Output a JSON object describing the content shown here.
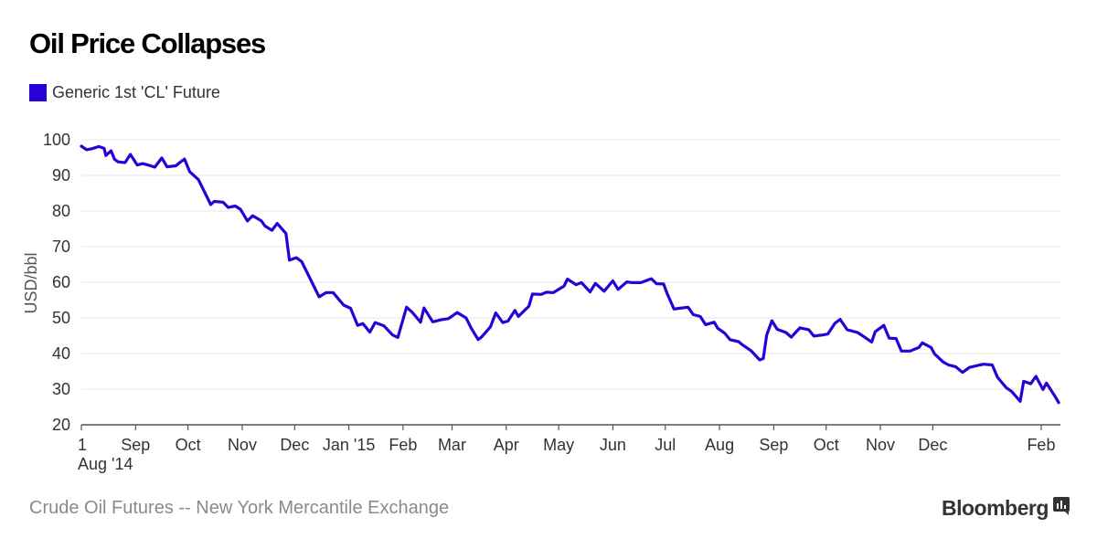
{
  "title": "Oil Price Collapses",
  "source": "Crude Oil Futures -- New York Mercantile Exchange",
  "brand": "Bloomberg",
  "brand_icon": "bloomberg-terminal-icon",
  "colors": {
    "series": "#2b00d7",
    "grid": "#e6e6e6",
    "axis": "#555555",
    "text": "#333333"
  },
  "chart_data": {
    "type": "line",
    "title": "Oil Price Collapses",
    "ylabel": "USD/bbl",
    "xlabel": "",
    "ylim": [
      20,
      100
    ],
    "yticks": [
      20,
      30,
      40,
      50,
      60,
      70,
      80,
      90,
      100
    ],
    "grid": true,
    "legend_position": "top-left",
    "x_domain": [
      "2014-08-01",
      "2016-02-12"
    ],
    "xticks": [
      {
        "date": "2014-08-01",
        "label": "1",
        "sublabel": "Aug '14"
      },
      {
        "date": "2014-09-01",
        "label": "Sep"
      },
      {
        "date": "2014-10-01",
        "label": "Oct"
      },
      {
        "date": "2014-11-01",
        "label": "Nov"
      },
      {
        "date": "2014-12-01",
        "label": "Dec"
      },
      {
        "date": "2015-01-01",
        "label": "Jan '15"
      },
      {
        "date": "2015-02-01",
        "label": "Feb"
      },
      {
        "date": "2015-03-01",
        "label": "Mar"
      },
      {
        "date": "2015-04-01",
        "label": "Apr"
      },
      {
        "date": "2015-05-01",
        "label": "May"
      },
      {
        "date": "2015-06-01",
        "label": "Jun"
      },
      {
        "date": "2015-07-01",
        "label": "Jul"
      },
      {
        "date": "2015-08-01",
        "label": "Aug"
      },
      {
        "date": "2015-09-01",
        "label": "Sep"
      },
      {
        "date": "2015-10-01",
        "label": "Oct"
      },
      {
        "date": "2015-11-01",
        "label": "Nov"
      },
      {
        "date": "2015-12-01",
        "label": "Dec"
      },
      {
        "date": "2016-02-01",
        "label": "Feb"
      }
    ],
    "series": [
      {
        "name": "Generic 1st 'CL' Future",
        "points": [
          [
            "2014-08-01",
            98.2
          ],
          [
            "2014-08-04",
            97.2
          ],
          [
            "2014-08-07",
            97.5
          ],
          [
            "2014-08-11",
            98.1
          ],
          [
            "2014-08-14",
            97.6
          ],
          [
            "2014-08-15",
            95.6
          ],
          [
            "2014-08-18",
            96.9
          ],
          [
            "2014-08-20",
            94.5
          ],
          [
            "2014-08-22",
            93.8
          ],
          [
            "2014-08-26",
            93.6
          ],
          [
            "2014-08-29",
            95.9
          ],
          [
            "2014-09-02",
            92.9
          ],
          [
            "2014-09-05",
            93.3
          ],
          [
            "2014-09-09",
            92.8
          ],
          [
            "2014-09-12",
            92.3
          ],
          [
            "2014-09-16",
            94.9
          ],
          [
            "2014-09-19",
            92.4
          ],
          [
            "2014-09-24",
            92.7
          ],
          [
            "2014-09-26",
            93.5
          ],
          [
            "2014-09-29",
            94.6
          ],
          [
            "2014-10-02",
            91.0
          ],
          [
            "2014-10-07",
            88.8
          ],
          [
            "2014-10-10",
            85.8
          ],
          [
            "2014-10-14",
            81.8
          ],
          [
            "2014-10-16",
            82.7
          ],
          [
            "2014-10-21",
            82.5
          ],
          [
            "2014-10-24",
            81.0
          ],
          [
            "2014-10-28",
            81.4
          ],
          [
            "2014-10-31",
            80.5
          ],
          [
            "2014-11-04",
            77.2
          ],
          [
            "2014-11-07",
            78.7
          ],
          [
            "2014-11-12",
            77.2
          ],
          [
            "2014-11-14",
            75.8
          ],
          [
            "2014-11-18",
            74.6
          ],
          [
            "2014-11-21",
            76.5
          ],
          [
            "2014-11-26",
            73.7
          ],
          [
            "2014-11-28",
            66.2
          ],
          [
            "2014-12-02",
            66.9
          ],
          [
            "2014-12-05",
            65.8
          ],
          [
            "2014-12-10",
            60.9
          ],
          [
            "2014-12-15",
            55.9
          ],
          [
            "2014-12-17",
            56.5
          ],
          [
            "2014-12-19",
            57.1
          ],
          [
            "2014-12-23",
            57.1
          ],
          [
            "2014-12-29",
            53.6
          ],
          [
            "2015-01-02",
            52.7
          ],
          [
            "2015-01-06",
            47.9
          ],
          [
            "2015-01-09",
            48.4
          ],
          [
            "2015-01-13",
            46.0
          ],
          [
            "2015-01-16",
            48.7
          ],
          [
            "2015-01-21",
            47.8
          ],
          [
            "2015-01-26",
            45.2
          ],
          [
            "2015-01-29",
            44.5
          ],
          [
            "2015-02-03",
            53.0
          ],
          [
            "2015-02-06",
            51.7
          ],
          [
            "2015-02-11",
            48.8
          ],
          [
            "2015-02-13",
            52.8
          ],
          [
            "2015-02-18",
            48.9
          ],
          [
            "2015-02-23",
            49.5
          ],
          [
            "2015-02-27",
            49.8
          ],
          [
            "2015-03-04",
            51.5
          ],
          [
            "2015-03-09",
            50.0
          ],
          [
            "2015-03-12",
            47.1
          ],
          [
            "2015-03-16",
            43.9
          ],
          [
            "2015-03-18",
            44.7
          ],
          [
            "2015-03-23",
            47.5
          ],
          [
            "2015-03-26",
            51.4
          ],
          [
            "2015-03-30",
            48.7
          ],
          [
            "2015-04-02",
            49.1
          ],
          [
            "2015-04-06",
            52.1
          ],
          [
            "2015-04-08",
            50.4
          ],
          [
            "2015-04-14",
            53.3
          ],
          [
            "2015-04-16",
            56.7
          ],
          [
            "2015-04-21",
            56.6
          ],
          [
            "2015-04-24",
            57.2
          ],
          [
            "2015-04-28",
            57.1
          ],
          [
            "2015-05-04",
            58.9
          ],
          [
            "2015-05-06",
            60.9
          ],
          [
            "2015-05-11",
            59.3
          ],
          [
            "2015-05-14",
            59.9
          ],
          [
            "2015-05-19",
            57.3
          ],
          [
            "2015-05-22",
            59.7
          ],
          [
            "2015-05-27",
            57.5
          ],
          [
            "2015-06-01",
            60.4
          ],
          [
            "2015-06-04",
            58.0
          ],
          [
            "2015-06-09",
            60.1
          ],
          [
            "2015-06-12",
            59.9
          ],
          [
            "2015-06-17",
            59.9
          ],
          [
            "2015-06-23",
            61.0
          ],
          [
            "2015-06-26",
            59.6
          ],
          [
            "2015-06-30",
            59.5
          ],
          [
            "2015-07-02",
            56.9
          ],
          [
            "2015-07-06",
            52.5
          ],
          [
            "2015-07-09",
            52.7
          ],
          [
            "2015-07-14",
            53.0
          ],
          [
            "2015-07-17",
            50.9
          ],
          [
            "2015-07-21",
            50.4
          ],
          [
            "2015-07-24",
            48.1
          ],
          [
            "2015-07-29",
            48.8
          ],
          [
            "2015-07-31",
            47.1
          ],
          [
            "2015-08-04",
            45.7
          ],
          [
            "2015-08-07",
            43.9
          ],
          [
            "2015-08-12",
            43.3
          ],
          [
            "2015-08-14",
            42.5
          ],
          [
            "2015-08-19",
            40.8
          ],
          [
            "2015-08-24",
            38.2
          ],
          [
            "2015-08-26",
            38.6
          ],
          [
            "2015-08-28",
            45.2
          ],
          [
            "2015-08-31",
            49.2
          ],
          [
            "2015-09-03",
            46.8
          ],
          [
            "2015-09-08",
            45.9
          ],
          [
            "2015-09-11",
            44.6
          ],
          [
            "2015-09-16",
            47.2
          ],
          [
            "2015-09-21",
            46.7
          ],
          [
            "2015-09-24",
            44.9
          ],
          [
            "2015-09-29",
            45.2
          ],
          [
            "2015-10-02",
            45.5
          ],
          [
            "2015-10-06",
            48.5
          ],
          [
            "2015-10-09",
            49.6
          ],
          [
            "2015-10-13",
            46.7
          ],
          [
            "2015-10-19",
            45.9
          ],
          [
            "2015-10-23",
            44.6
          ],
          [
            "2015-10-27",
            43.2
          ],
          [
            "2015-10-29",
            46.1
          ],
          [
            "2015-11-03",
            47.9
          ],
          [
            "2015-11-06",
            44.3
          ],
          [
            "2015-11-10",
            44.2
          ],
          [
            "2015-11-13",
            40.7
          ],
          [
            "2015-11-18",
            40.7
          ],
          [
            "2015-11-23",
            41.7
          ],
          [
            "2015-11-25",
            43.0
          ],
          [
            "2015-11-30",
            41.7
          ],
          [
            "2015-12-02",
            39.9
          ],
          [
            "2015-12-07",
            37.6
          ],
          [
            "2015-12-10",
            36.8
          ],
          [
            "2015-12-14",
            36.3
          ],
          [
            "2015-12-18",
            34.7
          ],
          [
            "2015-12-22",
            36.1
          ],
          [
            "2015-12-28",
            36.8
          ],
          [
            "2015-12-30",
            37.0
          ],
          [
            "2016-01-04",
            36.8
          ],
          [
            "2016-01-07",
            33.3
          ],
          [
            "2016-01-12",
            30.4
          ],
          [
            "2016-01-15",
            29.4
          ],
          [
            "2016-01-20",
            26.6
          ],
          [
            "2016-01-22",
            32.2
          ],
          [
            "2016-01-26",
            31.5
          ],
          [
            "2016-01-29",
            33.6
          ],
          [
            "2016-02-02",
            29.9
          ],
          [
            "2016-02-04",
            31.7
          ],
          [
            "2016-02-09",
            27.9
          ],
          [
            "2016-02-11",
            26.2
          ]
        ]
      }
    ]
  }
}
